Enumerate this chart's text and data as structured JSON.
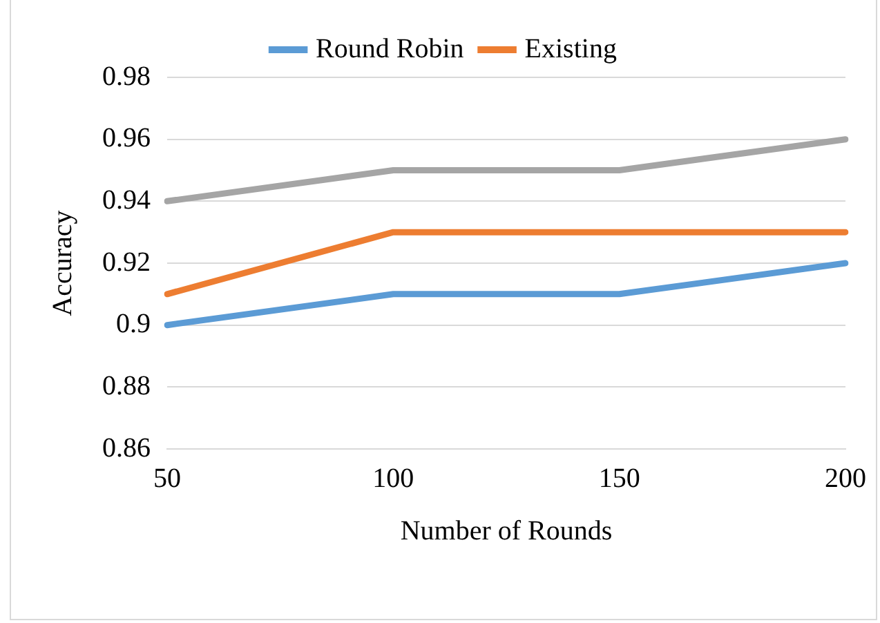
{
  "chart_data": {
    "type": "line",
    "xlabel": "Number of Rounds",
    "ylabel": "Accuracy",
    "categories": [
      "50",
      "100",
      "150",
      "200"
    ],
    "series": [
      {
        "name": "Round Robin",
        "color": "#5b9bd5",
        "values": [
          0.9,
          0.91,
          0.91,
          0.92
        ]
      },
      {
        "name": "Existing",
        "color": "#ed7d31",
        "values": [
          0.91,
          0.93,
          0.93,
          0.93
        ]
      },
      {
        "color": "#a5a5a5",
        "values": [
          0.94,
          0.95,
          0.95,
          0.96
        ]
      }
    ],
    "ylim": [
      0.86,
      0.98
    ],
    "yticks": [
      0.86,
      0.88,
      0.9,
      0.92,
      0.94,
      0.96,
      0.98
    ],
    "grid": "y",
    "legend": "top",
    "marker": "none",
    "line_style": "solid"
  }
}
